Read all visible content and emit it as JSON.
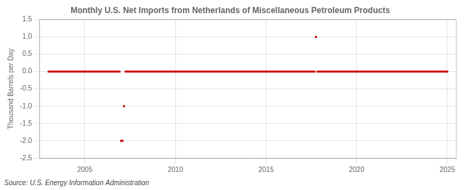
{
  "chart_data": {
    "type": "scatter",
    "title": "Monthly U.S. Net Imports from Netherlands of Miscellaneous Petroleum Products",
    "ylabel": "Thousand Barrels per Day",
    "annotations": [
      "Source: U.S. Energy Information Administration"
    ],
    "color": "#cc0000",
    "marker": "square",
    "grid": true,
    "xlim": [
      2002.5,
      2025.5
    ],
    "ylim": [
      -2.5,
      1.5
    ],
    "xticks": [
      2005,
      2010,
      2015,
      2020,
      2025
    ],
    "yticks": [
      -2.5,
      {
        "value": -2.0,
        "label": "-2.0"
      },
      -1.5,
      {
        "value": -1.0,
        "label": "-1.0"
      },
      -0.5,
      {
        "value": 0.0,
        "label": "0.0"
      },
      0.5,
      {
        "value": 1.0,
        "label": "1.0"
      },
      1.5
    ],
    "x": [
      2003.0,
      2003.083,
      2003.167,
      2003.25,
      2003.333,
      2003.417,
      2003.5,
      2003.583,
      2003.667,
      2003.75,
      2003.833,
      2003.917,
      2004.0,
      2004.083,
      2004.167,
      2004.25,
      2004.333,
      2004.417,
      2004.5,
      2004.583,
      2004.667,
      2004.75,
      2004.833,
      2004.917,
      2005.0,
      2005.083,
      2005.167,
      2005.25,
      2005.333,
      2005.417,
      2005.5,
      2005.583,
      2005.667,
      2005.75,
      2005.833,
      2005.917,
      2006.0,
      2006.083,
      2006.167,
      2006.25,
      2006.333,
      2006.417,
      2006.5,
      2006.583,
      2006.667,
      2006.75,
      2006.833,
      2006.917,
      2007.0,
      2007.083,
      2007.167,
      2007.25,
      2007.333,
      2007.417,
      2007.5,
      2007.583,
      2007.667,
      2007.75,
      2007.833,
      2007.917,
      2008.0,
      2008.083,
      2008.167,
      2008.25,
      2008.333,
      2008.417,
      2008.5,
      2008.583,
      2008.667,
      2008.75,
      2008.833,
      2008.917,
      2009.0,
      2009.083,
      2009.167,
      2009.25,
      2009.333,
      2009.417,
      2009.5,
      2009.583,
      2009.667,
      2009.75,
      2009.833,
      2009.917,
      2010.0,
      2010.083,
      2010.167,
      2010.25,
      2010.333,
      2010.417,
      2010.5,
      2010.583,
      2010.667,
      2010.75,
      2010.833,
      2010.917,
      2011.0,
      2011.083,
      2011.167,
      2011.25,
      2011.333,
      2011.417,
      2011.5,
      2011.583,
      2011.667,
      2011.75,
      2011.833,
      2011.917,
      2012.0,
      2012.083,
      2012.167,
      2012.25,
      2012.333,
      2012.417,
      2012.5,
      2012.583,
      2012.667,
      2012.75,
      2012.833,
      2012.917,
      2013.0,
      2013.083,
      2013.167,
      2013.25,
      2013.333,
      2013.417,
      2013.5,
      2013.583,
      2013.667,
      2013.75,
      2013.833,
      2013.917,
      2014.0,
      2014.083,
      2014.167,
      2014.25,
      2014.333,
      2014.417,
      2014.5,
      2014.583,
      2014.667,
      2014.75,
      2014.833,
      2014.917,
      2015.0,
      2015.083,
      2015.167,
      2015.25,
      2015.333,
      2015.417,
      2015.5,
      2015.583,
      2015.667,
      2015.75,
      2015.833,
      2015.917,
      2016.0,
      2016.083,
      2016.167,
      2016.25,
      2016.333,
      2016.417,
      2016.5,
      2016.583,
      2016.667,
      2016.75,
      2016.833,
      2016.917,
      2017.0,
      2017.083,
      2017.167,
      2017.25,
      2017.333,
      2017.417,
      2017.5,
      2017.583,
      2017.667,
      2017.75,
      2017.833,
      2017.917,
      2018.0,
      2018.083,
      2018.167,
      2018.25,
      2018.333,
      2018.417,
      2018.5,
      2018.583,
      2018.667,
      2018.75,
      2018.833,
      2018.917,
      2019.0,
      2019.083,
      2019.167,
      2019.25,
      2019.333,
      2019.417,
      2019.5,
      2019.583,
      2019.667,
      2019.75,
      2019.833,
      2019.917,
      2020.0,
      2020.083,
      2020.167,
      2020.25,
      2020.333,
      2020.417,
      2020.5,
      2020.583,
      2020.667,
      2020.75,
      2020.833,
      2020.917,
      2021.0,
      2021.083,
      2021.167,
      2021.25,
      2021.333,
      2021.417,
      2021.5,
      2021.583,
      2021.667,
      2021.75,
      2021.833,
      2021.917,
      2022.0,
      2022.083,
      2022.167,
      2022.25,
      2022.333,
      2022.417,
      2022.5,
      2022.583,
      2022.667,
      2022.75,
      2022.833,
      2022.917,
      2023.0,
      2023.083,
      2023.167,
      2023.25,
      2023.333,
      2023.417,
      2023.5,
      2023.583,
      2023.667,
      2023.75,
      2023.833,
      2023.917,
      2024.0,
      2024.083,
      2024.167,
      2024.25,
      2024.333,
      2024.417,
      2024.5,
      2024.583,
      2024.667,
      2024.75,
      2024.833,
      2024.917,
      2025.0
    ],
    "values": [
      0,
      0,
      0,
      0,
      0,
      0,
      0,
      0,
      0,
      0,
      0,
      0,
      0,
      0,
      0,
      0,
      0,
      0,
      0,
      0,
      0,
      0,
      0,
      0,
      0,
      0,
      0,
      0,
      0,
      0,
      0,
      0,
      0,
      0,
      0,
      0,
      0,
      0,
      0,
      0,
      0,
      0,
      0,
      0,
      0,
      0,
      0,
      0,
      -2,
      -2,
      -1,
      0,
      0,
      0,
      0,
      0,
      0,
      0,
      0,
      0,
      0,
      0,
      0,
      0,
      0,
      0,
      0,
      0,
      0,
      0,
      0,
      0,
      0,
      0,
      0,
      0,
      0,
      0,
      0,
      0,
      0,
      0,
      0,
      0,
      0,
      0,
      0,
      0,
      0,
      0,
      0,
      0,
      0,
      0,
      0,
      0,
      0,
      0,
      0,
      0,
      0,
      0,
      0,
      0,
      0,
      0,
      0,
      0,
      0,
      0,
      0,
      0,
      0,
      0,
      0,
      0,
      0,
      0,
      0,
      0,
      0,
      0,
      0,
      0,
      0,
      0,
      0,
      0,
      0,
      0,
      0,
      0,
      0,
      0,
      0,
      0,
      0,
      0,
      0,
      0,
      0,
      0,
      0,
      0,
      0,
      0,
      0,
      0,
      0,
      0,
      0,
      0,
      0,
      0,
      0,
      0,
      0,
      0,
      0,
      0,
      0,
      0,
      0,
      0,
      0,
      0,
      0,
      0,
      0,
      0,
      0,
      0,
      0,
      0,
      0,
      0,
      0,
      1,
      0,
      0,
      0,
      0,
      0,
      0,
      0,
      0,
      0,
      0,
      0,
      0,
      0,
      0,
      0,
      0,
      0,
      0,
      0,
      0,
      0,
      0,
      0,
      0,
      0,
      0,
      0,
      0,
      0,
      0,
      0,
      0,
      0,
      0,
      0,
      0,
      0,
      0,
      0,
      0,
      0,
      0,
      0,
      0,
      0,
      0,
      0,
      0,
      0,
      0,
      0,
      0,
      0,
      0,
      0,
      0,
      0,
      0,
      0,
      0,
      0,
      0,
      0,
      0,
      0,
      0,
      0,
      0,
      0,
      0,
      0,
      0,
      0,
      0,
      0,
      0,
      0,
      0,
      0,
      0,
      0,
      0,
      0,
      0,
      0,
      0,
      0
    ]
  }
}
